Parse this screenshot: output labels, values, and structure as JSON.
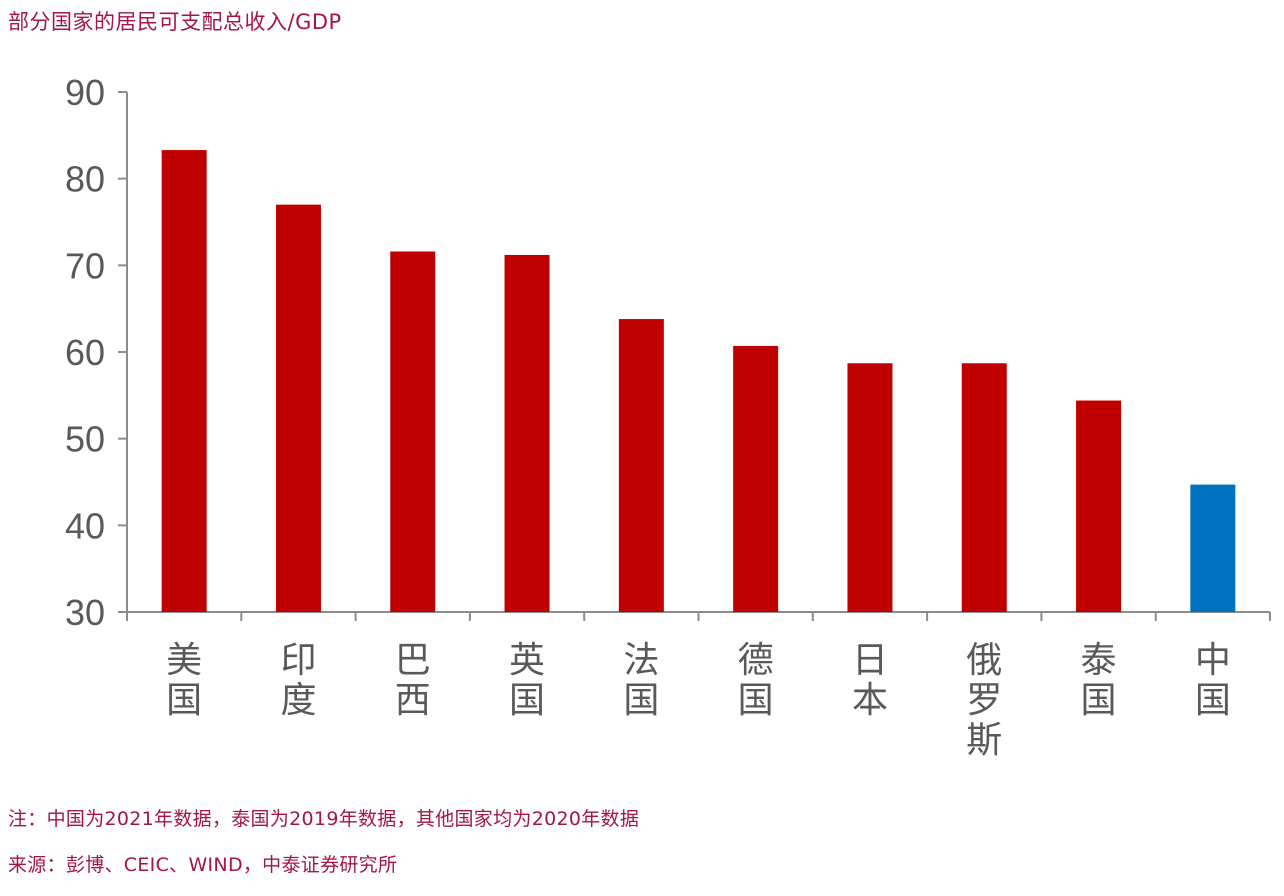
{
  "title": "部分国家的居民可支配总收入/GDP",
  "note": "注：中国为2021年数据，泰国为2019年数据，其他国家均为2020年数据",
  "source": "来源：彭博、CEIC、WIND，中泰证券研究所",
  "colors": {
    "default_bar": "#c00000",
    "highlight_bar": "#0070c0",
    "axis": "#8c8c8c",
    "tick_label": "#595959",
    "text_accent": "#a3154a"
  },
  "chart_data": {
    "type": "bar",
    "title": "部分国家的居民可支配总收入/GDP",
    "xlabel": "",
    "ylabel": "",
    "categories": [
      "美国",
      "印度",
      "巴西",
      "英国",
      "法国",
      "德国",
      "日本",
      "俄罗斯",
      "泰国",
      "中国"
    ],
    "values": [
      83.3,
      77.0,
      71.6,
      71.2,
      63.8,
      60.7,
      58.7,
      58.7,
      54.4,
      44.7
    ],
    "highlight_category": "中国",
    "ylim": [
      30,
      90
    ],
    "yticks": [
      30,
      40,
      50,
      60,
      70,
      80,
      90
    ],
    "grid": false,
    "legend": "none"
  }
}
